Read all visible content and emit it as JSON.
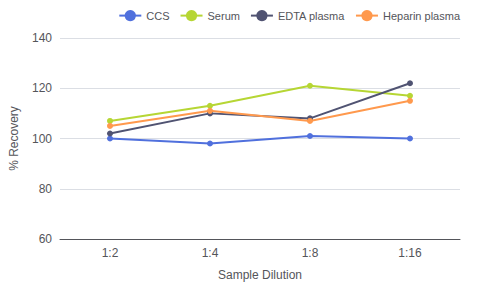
{
  "chart_data": {
    "type": "line",
    "categories": [
      "1:2",
      "1:4",
      "1:8",
      "1:16"
    ],
    "series": [
      {
        "name": "CCS",
        "values": [
          100,
          98,
          101,
          100
        ]
      },
      {
        "name": "Serum",
        "values": [
          107,
          113,
          121,
          117
        ]
      },
      {
        "name": "EDTA plasma",
        "values": [
          102,
          110,
          108,
          122
        ]
      },
      {
        "name": "Heparin plasma",
        "values": [
          105,
          111,
          107,
          115
        ]
      }
    ],
    "xlabel": "Sample Dilution",
    "ylabel": "% Recovery",
    "ylim": [
      60,
      140
    ],
    "yticks": [
      60,
      80,
      100,
      120,
      140
    ],
    "grid": true,
    "legend": "upper right",
    "marker": "circle"
  }
}
